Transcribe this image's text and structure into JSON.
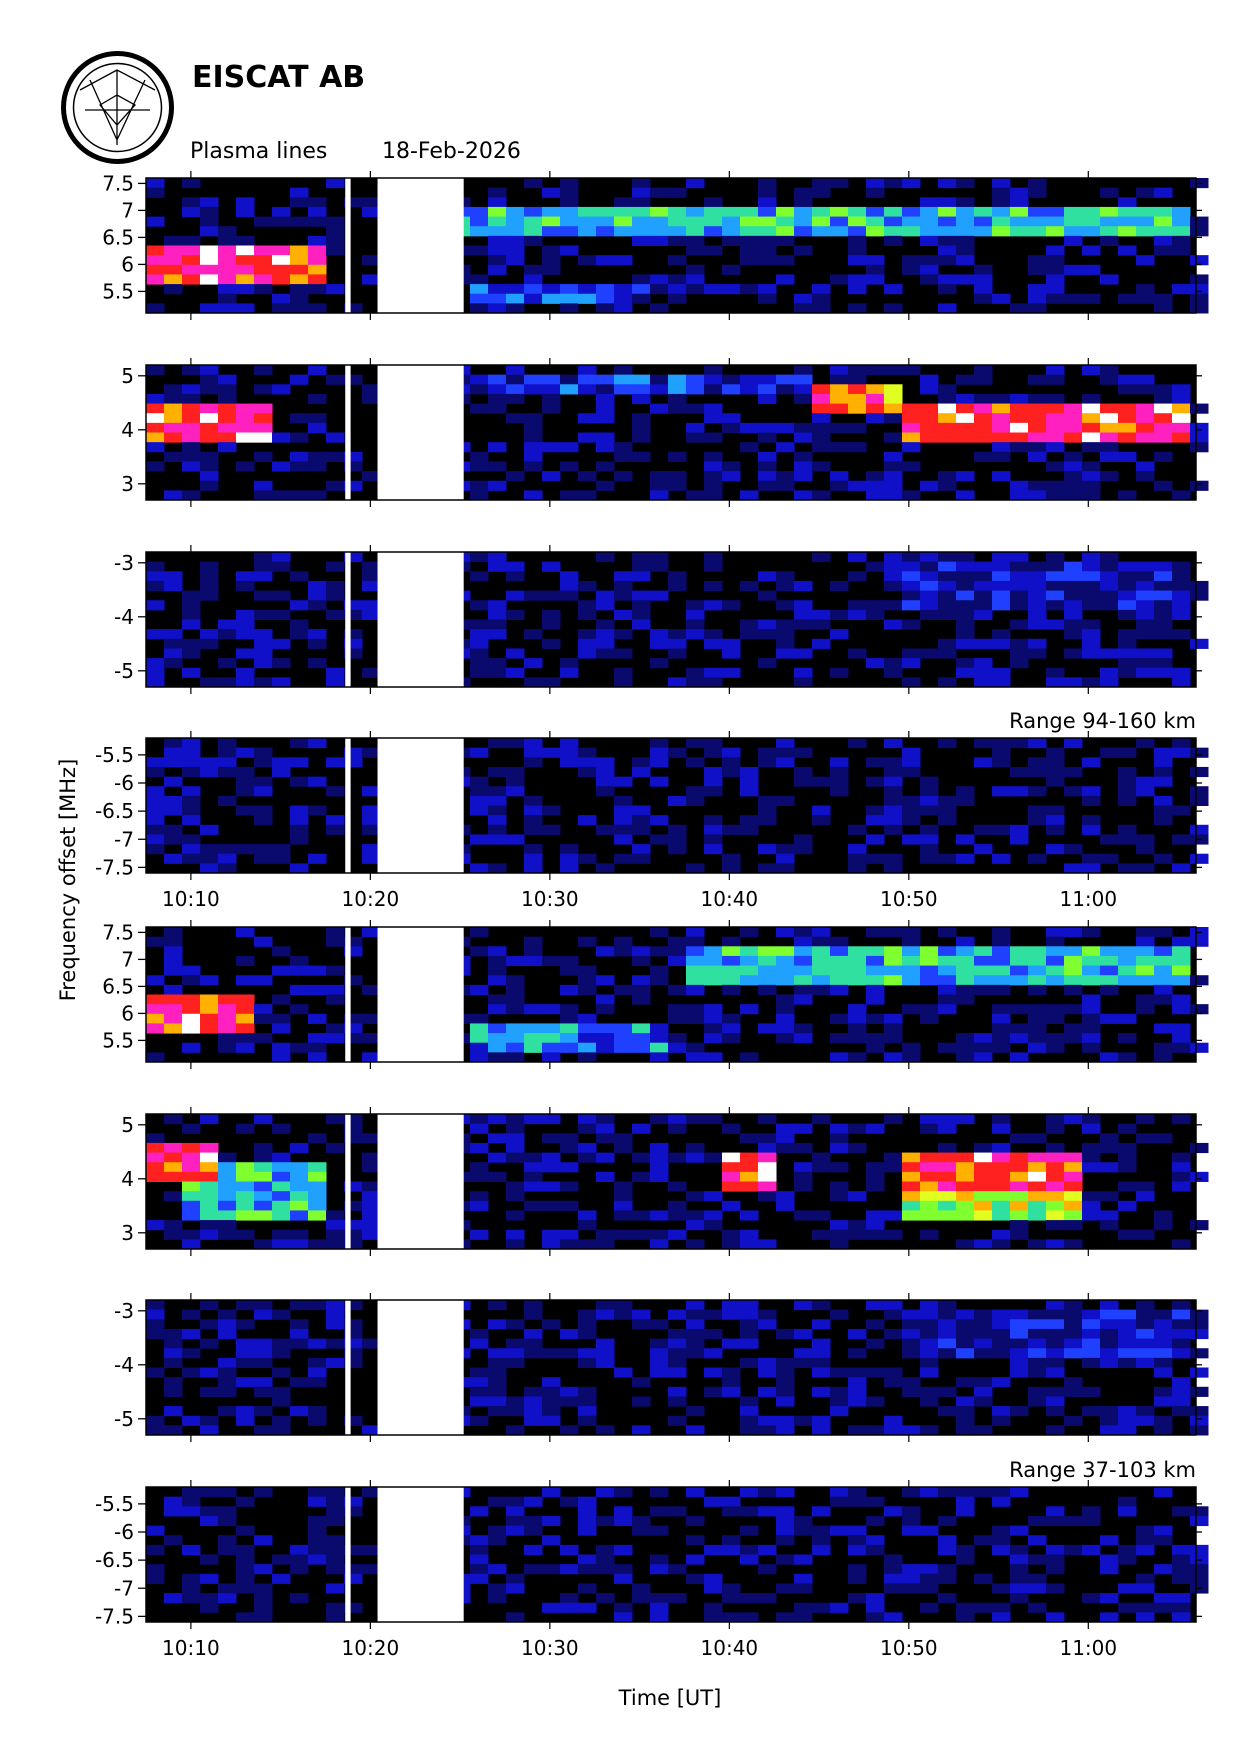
{
  "header": {
    "org": "EISCAT AB",
    "title": "Plasma lines",
    "date": "18-Feb-2026"
  },
  "axes": {
    "ylabel": "Frequency offset [MHz]",
    "xlabel": "Time [UT]"
  },
  "colors": {
    "background": "#000000",
    "gap": "#ffffff",
    "scale": [
      "#000000",
      "#0a0a6e",
      "#1010c8",
      "#2040ff",
      "#20a0ff",
      "#30e0a0",
      "#80ff30",
      "#e0ff20",
      "#ffb000",
      "#ff2020",
      "#ff20c0",
      "#ffffff"
    ]
  },
  "chart_data": {
    "type": "heatmap",
    "time_range_min": [
      607.5,
      666.0
    ],
    "x_ticks": [
      {
        "t": 610,
        "label": "10:10"
      },
      {
        "t": 620,
        "label": "10:20"
      },
      {
        "t": 630,
        "label": "10:30"
      },
      {
        "t": 640,
        "label": "10:40"
      },
      {
        "t": 650,
        "label": "10:50"
      },
      {
        "t": 660,
        "label": "11:00"
      }
    ],
    "data_gaps_min": [
      [
        618.6,
        618.9
      ],
      [
        620.4,
        625.2
      ]
    ],
    "groups": [
      {
        "range_label": "Range 94-160 km",
        "panels": [
          {
            "ylim": [
              5.1,
              7.6
            ],
            "ticks": [
              5.5,
              6,
              6.5,
              7,
              7.5
            ],
            "tick_labels": [
              "5.5",
              "6",
              "6.5",
              "7",
              "7.5"
            ],
            "features": [
              {
                "kind": "band",
                "t0": 607.5,
                "t1": 618,
                "f0": 5.7,
                "f1": 6.3,
                "level": 11
              },
              {
                "kind": "band",
                "t0": 625,
                "t1": 666,
                "f0": 6.6,
                "f1": 7.0,
                "level": 6
              },
              {
                "kind": "band",
                "t0": 626,
                "t1": 636,
                "f0": 5.2,
                "f1": 5.7,
                "level": 4
              }
            ]
          },
          {
            "ylim": [
              2.7,
              5.2
            ],
            "ticks": [
              3,
              4,
              5
            ],
            "tick_labels": [
              "3",
              "4",
              "5"
            ],
            "features": [
              {
                "kind": "band",
                "t0": 607.5,
                "t1": 615,
                "f0": 3.7,
                "f1": 4.4,
                "level": 11
              },
              {
                "kind": "band",
                "t0": 645,
                "t1": 650,
                "f0": 4.3,
                "f1": 4.8,
                "level": 10
              },
              {
                "kind": "band",
                "t0": 650,
                "t1": 666,
                "f0": 3.8,
                "f1": 4.4,
                "level": 11
              },
              {
                "kind": "band",
                "t0": 626,
                "t1": 645,
                "f0": 4.7,
                "f1": 5.1,
                "level": 4
              }
            ]
          },
          {
            "ylim": [
              -5.3,
              -2.8
            ],
            "ticks": [
              -3,
              -4,
              -5
            ],
            "tick_labels": [
              "-3",
              "-4",
              "-5"
            ],
            "features": [
              {
                "kind": "band",
                "t0": 650,
                "t1": 666,
                "f0": -3.8,
                "f1": -3.0,
                "level": 3
              }
            ]
          },
          {
            "ylim": [
              -7.6,
              -5.2
            ],
            "ticks": [
              -5.5,
              -6,
              -6.5,
              -7,
              -7.5
            ],
            "tick_labels": [
              "-5.5",
              "-6",
              "-6.5",
              "-7",
              "-7.5"
            ],
            "features": []
          }
        ]
      },
      {
        "range_label": "Range 37-103 km",
        "panels": [
          {
            "ylim": [
              5.1,
              7.6
            ],
            "ticks": [
              5.5,
              6,
              6.5,
              7,
              7.5
            ],
            "tick_labels": [
              "5.5",
              "6",
              "6.5",
              "7",
              "7.5"
            ],
            "features": [
              {
                "kind": "band",
                "t0": 607.5,
                "t1": 614,
                "f0": 5.7,
                "f1": 6.4,
                "level": 11
              },
              {
                "kind": "band",
                "t0": 638,
                "t1": 666,
                "f0": 6.5,
                "f1": 7.2,
                "level": 6
              },
              {
                "kind": "band",
                "t0": 626,
                "t1": 637,
                "f0": 5.2,
                "f1": 5.8,
                "level": 5
              }
            ]
          },
          {
            "ylim": [
              2.7,
              5.2
            ],
            "ticks": [
              3,
              4,
              5
            ],
            "tick_labels": [
              "3",
              "4",
              "5"
            ],
            "features": [
              {
                "kind": "band",
                "t0": 607.5,
                "t1": 612,
                "f0": 4.0,
                "f1": 4.7,
                "level": 11
              },
              {
                "kind": "band",
                "t0": 610,
                "t1": 618,
                "f0": 3.3,
                "f1": 4.3,
                "level": 6
              },
              {
                "kind": "band",
                "t0": 640,
                "t1": 643,
                "f0": 3.8,
                "f1": 4.4,
                "level": 11
              },
              {
                "kind": "band",
                "t0": 650,
                "t1": 660,
                "f0": 3.8,
                "f1": 4.4,
                "level": 11
              },
              {
                "kind": "band",
                "t0": 650,
                "t1": 660,
                "f0": 3.2,
                "f1": 3.8,
                "level": 8
              }
            ]
          },
          {
            "ylim": [
              -5.3,
              -2.8
            ],
            "ticks": [
              -3,
              -4,
              -5
            ],
            "tick_labels": [
              "-3",
              "-4",
              "-5"
            ],
            "features": [
              {
                "kind": "band",
                "t0": 650,
                "t1": 666,
                "f0": -3.8,
                "f1": -3.0,
                "level": 3
              }
            ]
          },
          {
            "ylim": [
              -7.6,
              -5.2
            ],
            "ticks": [
              -5.5,
              -6,
              -6.5,
              -7,
              -7.5
            ],
            "tick_labels": [
              "-5.5",
              "-6",
              "-6.5",
              "-7",
              "-7.5"
            ],
            "features": []
          }
        ]
      }
    ]
  }
}
